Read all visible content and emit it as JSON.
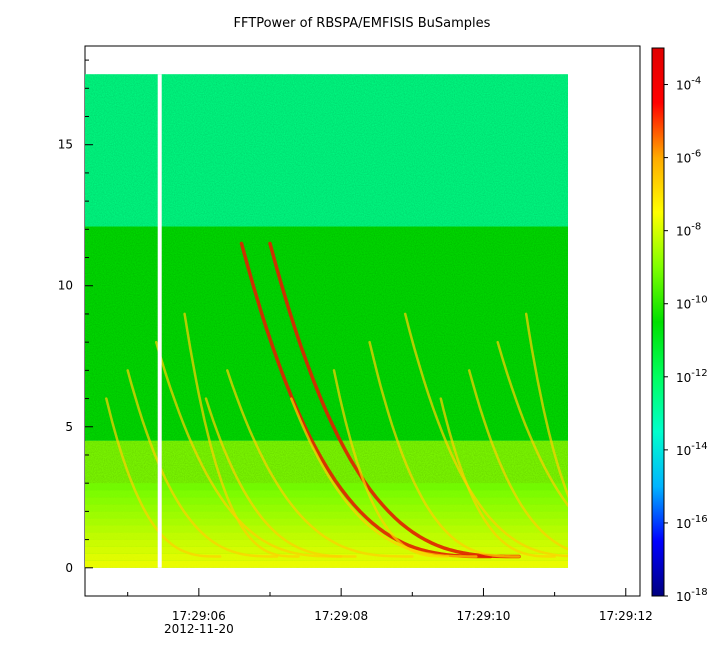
{
  "chart_data": {
    "type": "heatmap",
    "title": "FFTPower of RBSPA/EMFISIS  BuSamples",
    "xlabel": "",
    "ylabel": "",
    "x_ticks": [
      "17:29:06",
      "17:29:08",
      "17:29:10",
      "17:29:12"
    ],
    "x_date_label": "2012-11-20",
    "x_range_seconds": [
      4.4,
      12.2
    ],
    "data_time_range_seconds": [
      4.4,
      11.3
    ],
    "y_ticks": [
      0,
      5,
      10,
      15
    ],
    "ylim": [
      -1,
      18.5
    ],
    "data_freq_max": 17.5,
    "colorbar": {
      "scale": "log",
      "range": [
        1e-18,
        0.001
      ],
      "tick_labels": [
        {
          "base": "10",
          "exp": "-4",
          "value": -4
        },
        {
          "base": "10",
          "exp": "-6",
          "value": -6
        },
        {
          "base": "10",
          "exp": "-8",
          "value": -8
        },
        {
          "base": "10",
          "exp": "-10",
          "value": -10
        },
        {
          "base": "10",
          "exp": "-12",
          "value": -12
        },
        {
          "base": "10",
          "exp": "-14",
          "value": -14
        },
        {
          "base": "10",
          "exp": "-16",
          "value": -16
        },
        {
          "base": "10",
          "exp": "-18",
          "value": -18
        }
      ],
      "colors": [
        "#00007f",
        "#0000ff",
        "#00b4ff",
        "#00ffcc",
        "#00ff60",
        "#00e000",
        "#7fff00",
        "#ffff00",
        "#ffaa00",
        "#ff0000",
        "#e00000"
      ]
    },
    "background_levels": [
      {
        "freq_range": [
          12.1,
          17.5
        ],
        "log_power": -12.5
      },
      {
        "freq_range": [
          4.5,
          12.1
        ],
        "log_power": -10.5
      },
      {
        "freq_range": [
          0,
          4.5
        ],
        "log_power": -9.0
      }
    ],
    "data_gap": {
      "time_seconds": 5.45
    },
    "chorus_elements_start_seconds": [
      4.7,
      5.0,
      5.4,
      5.8,
      6.1,
      6.4,
      6.6,
      7.0,
      7.3,
      7.9,
      8.4,
      8.9,
      9.4,
      9.8,
      10.2,
      10.6
    ]
  }
}
